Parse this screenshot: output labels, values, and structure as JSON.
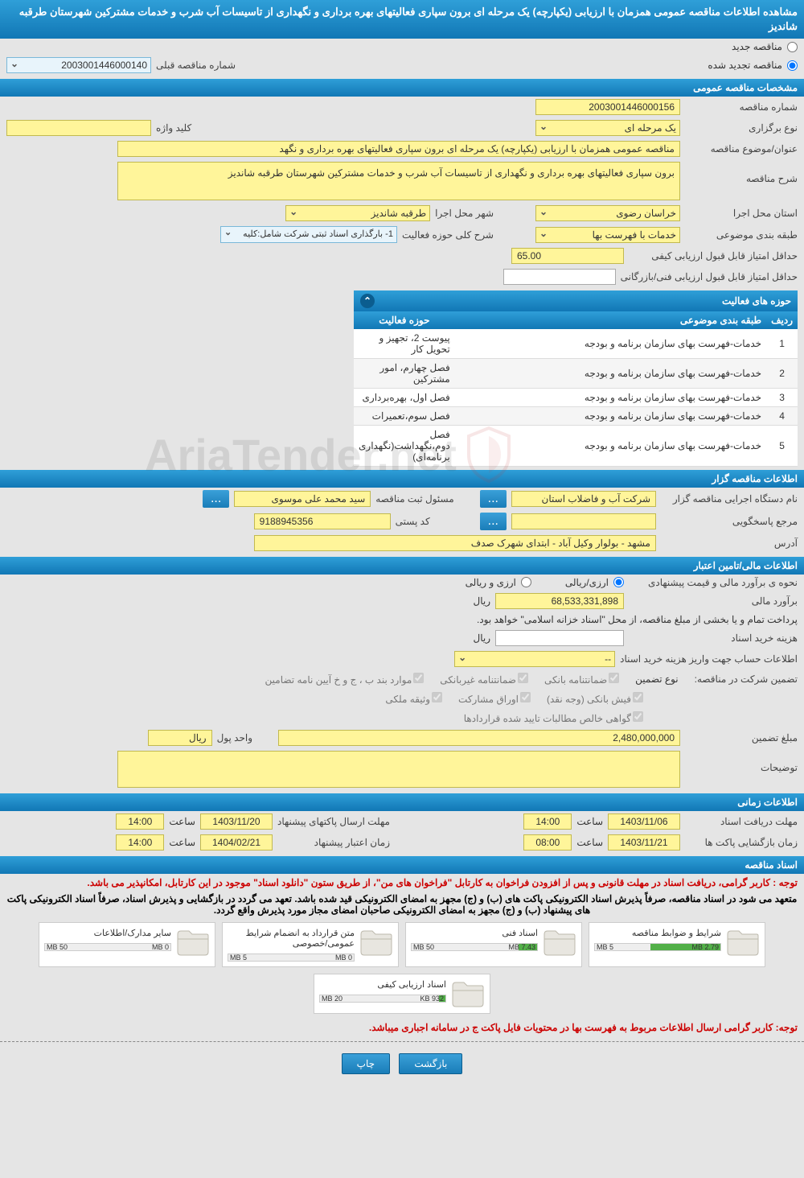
{
  "header_title": "مشاهده اطلاعات مناقصه عمومی همزمان با ارزیابی (یکپارچه) یک مرحله ای برون سپاری فعالیتهای بهره برداری و نگهداری از تاسیسات آب شرب و خدمات مشترکین شهرستان طرقبه شاندیز",
  "top_radios": {
    "new": "مناقصه جدید",
    "renewed": "مناقصه تجدید شده",
    "prev_num_label": "شماره مناقصه قبلی",
    "prev_num": "2003001446000140"
  },
  "sections": {
    "general": "مشخصات مناقصه عمومی",
    "organizer": "اطلاعات مناقصه گزار",
    "financial": "اطلاعات مالی/تامین اعتبار",
    "timing": "اطلاعات زمانی",
    "docs": "اسناد مناقصه"
  },
  "general": {
    "tender_no_label": "شماره مناقصه",
    "tender_no": "2003001446000156",
    "type_label": "نوع برگزاری",
    "type": "یک مرحله ای",
    "keyword_label": "کلید واژه",
    "keyword": "",
    "subject_label": "عنوان/موضوع مناقصه",
    "subject": "مناقصه عمومی همزمان با ارزیابی (یکپارچه) یک مرحله ای برون سپاری فعالیتهای بهره برداری و نگهد",
    "desc_label": "شرح مناقصه",
    "desc": "برون سپاری فعالیتهای بهره برداری و نگهداری از تاسیسات آب شرب و خدمات مشترکین شهرستان طرقبه شاندیز",
    "province_label": "استان محل اجرا",
    "province": "خراسان رضوی",
    "city_label": "شهر محل اجرا",
    "city": "طرقبه شاندیز",
    "category_label": "طبقه بندی موضوعی",
    "category": "خدمات با فهرست بها",
    "activity_scope_label": "شرح کلی حوزه فعالیت",
    "activity_scope": "1- بارگذاری اسناد ثبتی شرکت شامل:کلیه",
    "min_qual_label": "حداقل امتیاز قابل قبول ارزیابی کیفی",
    "min_qual": "65.00",
    "min_tech_label": "حداقل امتیاز قابل قبول ارزیابی فنی/بازرگانی",
    "min_tech": ""
  },
  "activity_table": {
    "title": "حوزه های فعالیت",
    "cols": {
      "idx": "ردیف",
      "cat": "طبقه بندی موضوعی",
      "act": "حوزه فعالیت"
    },
    "rows": [
      {
        "i": "1",
        "cat": "خدمات-فهرست بهای سازمان برنامه و بودجه",
        "act": "پیوست 2، تجهیز و تحویل کار"
      },
      {
        "i": "2",
        "cat": "خدمات-فهرست بهای سازمان برنامه و بودجه",
        "act": "فصل چهارم، امور مشترکین"
      },
      {
        "i": "3",
        "cat": "خدمات-فهرست بهای سازمان برنامه و بودجه",
        "act": "فصل اول، بهره‌برداری"
      },
      {
        "i": "4",
        "cat": "خدمات-فهرست بهای سازمان برنامه و بودجه",
        "act": "فصل سوم،تعمیرات"
      },
      {
        "i": "5",
        "cat": "خدمات-فهرست بهای سازمان برنامه و بودجه",
        "act": "فصل دوم،نگهداشت(نگهداری برنامه‌ای)"
      }
    ]
  },
  "organizer": {
    "org_label": "نام دستگاه اجرایی مناقصه گزار",
    "org": "شرکت آب و فاضلاب استان",
    "responsible_label": "مسئول ثبت مناقصه",
    "responsible": "سید محمد علی موسوی",
    "contact_label": "مرجع پاسخگویی",
    "contact": "",
    "postal_label": "کد پستی",
    "postal": "9188945356",
    "address_label": "آدرس",
    "address": "مشهد - بولوار وکیل آباد - ابتدای شهرک صدف"
  },
  "financial": {
    "method_label": "نحوه ی برآورد مالی و قیمت پیشنهادی",
    "method_fx": "ارزی/ریالی",
    "method_rial": "ارزی و ریالی",
    "estimate_label": "برآورد مالی",
    "estimate": "68,533,331,898",
    "unit": "ریال",
    "treasury_note": "پرداخت تمام و یا بخشی از مبلغ مناقصه، از محل \"اسناد خزانه اسلامی\" خواهد بود.",
    "doc_fee_label": "هزینه خرید اسناد",
    "doc_fee": "",
    "account_label": "اطلاعات حساب جهت واریز هزینه خرید اسناد",
    "account": "--",
    "guarantee_label": "تضمین شرکت در مناقصه:",
    "guarantee_type_label": "نوع تضمین",
    "g1": "ضمانتنامه بانکی",
    "g2": "ضمانتنامه غیربانکی",
    "g3": "موارد بند ب ، ج و خ آیین نامه تضامین",
    "g4": "فیش بانکی (وجه نقد)",
    "g5": "اوراق مشارکت",
    "g6": "وثیقه ملکی",
    "g7": "گواهی خالص مطالبات تایید شده قراردادها",
    "guarantee_amount_label": "مبلغ تضمین",
    "guarantee_amount": "2,480,000,000",
    "guarantee_unit_label": "واحد پول",
    "guarantee_unit": "ریال",
    "notes_label": "توضیحات",
    "notes": ""
  },
  "timing": {
    "receive_label": "مهلت دریافت اسناد",
    "receive_date": "1403/11/06",
    "receive_time": "14:00",
    "open_label": "زمان بازگشایی پاکت ها",
    "open_date": "1403/11/21",
    "open_time": "08:00",
    "send_label": "مهلت ارسال پاکتهای پیشنهاد",
    "send_date": "1403/11/20",
    "send_time": "14:00",
    "validity_label": "زمان اعتبار پیشنهاد",
    "validity_date": "1404/02/21",
    "validity_time": "14:00",
    "hour_label": "ساعت"
  },
  "docs": {
    "note1": "توجه : کاربر گرامی، دریافت اسناد در مهلت قانونی و پس از افزودن فراخوان به کارتابل \"فراخوان های من\"، از طریق ستون \"دانلود اسناد\" موجود در این کارتابل، امکانپذیر می باشد.",
    "note2": "متعهد می شود در اسناد مناقصه، صرفاً پذیرش اسناد الکترونیکی پاکت های (ب) و (ج) مجهز به امضای الکترونیکی قید شده باشد. تعهد می گردد در بازگشایی و پذیرش اسناد، صرفاً اسناد الکترونیکی پاکت های پیشنهاد (ب) و (ج) مجهز به امضای الکترونیکی صاحبان امضای مجاز مورد پذیرش واقع گردد.",
    "items": [
      {
        "title": "شرایط و ضوابط مناقصه",
        "used": "2.79 MB",
        "max": "5 MB",
        "pct": 56
      },
      {
        "title": "اسناد فنی",
        "used": "7.43 MB",
        "max": "50 MB",
        "pct": 15
      },
      {
        "title": "متن قرارداد به انضمام شرایط عمومی/خصوصی",
        "used": "0 MB",
        "max": "5 MB",
        "pct": 0
      },
      {
        "title": "سایر مدارک/اطلاعات",
        "used": "0 MB",
        "max": "50 MB",
        "pct": 0
      },
      {
        "title": "اسناد ارزیابی کیفی",
        "used": "932 KB",
        "max": "20 MB",
        "pct": 5
      }
    ],
    "footer_note": "توجه: کاربر گرامی ارسال اطلاعات مربوط به فهرست بها در محتویات فایل پاکت ج در سامانه اجباری میباشد."
  },
  "buttons": {
    "back": "بازگشت",
    "print": "چاپ"
  },
  "watermark": "AriaTender.net",
  "colors": {
    "header_grad_top": "#2f9fd8",
    "header_grad_bot": "#1177b5",
    "field_bg": "#fff59a",
    "field_border": "#c2b94f",
    "bg": "#e5e5e5",
    "progress_green": "#52b048",
    "red_text": "#cc0000"
  }
}
